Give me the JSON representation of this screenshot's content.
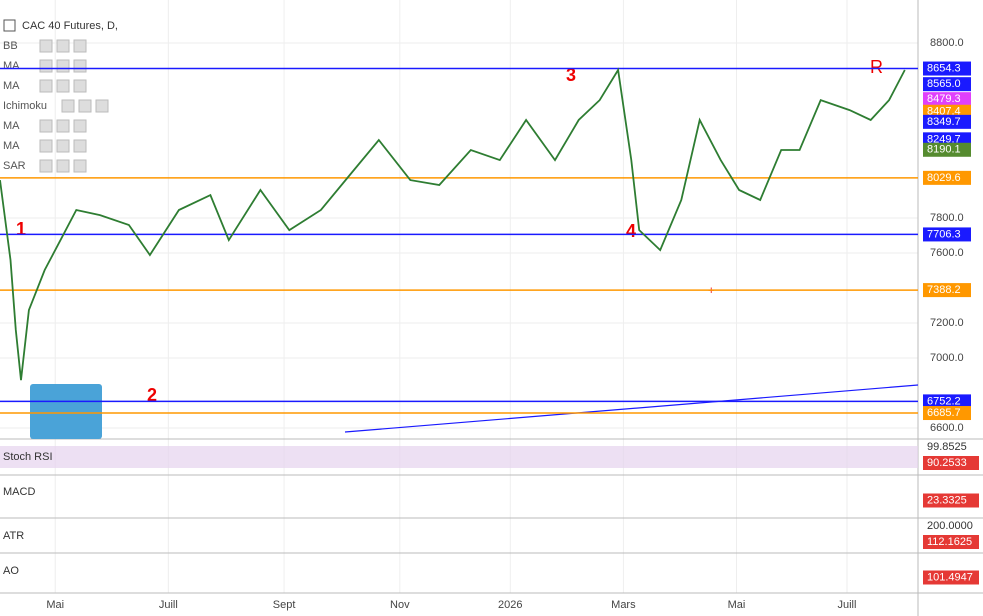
{
  "chart_data": {
    "type": "line",
    "title": "CAC 40 Futures, D,",
    "indicators": [
      "BB",
      "MA",
      "MA",
      "Ichimoku",
      "MA",
      "MA",
      "SAR"
    ],
    "x": [
      0,
      4,
      6,
      8,
      11,
      17,
      23,
      29,
      38,
      49,
      57,
      68,
      80,
      87,
      99,
      110,
      122,
      133,
      144,
      156,
      167,
      179,
      190,
      200,
      211,
      220,
      228,
      235,
      240,
      243,
      251,
      259,
      266,
      274,
      281,
      289,
      297,
      304,
      312,
      323,
      331,
      338,
      344
    ],
    "values": [
      8017,
      7560,
      7160,
      6874,
      7274,
      7503,
      7674,
      7846,
      7817,
      7760,
      7589,
      7846,
      7931,
      7674,
      7960,
      7731,
      7846,
      8046,
      8246,
      8017,
      7989,
      8189,
      8131,
      8360,
      8131,
      8360,
      8474,
      8646,
      8131,
      7731,
      7617,
      7903,
      8360,
      8131,
      7960,
      7903,
      8189,
      8189,
      8474,
      8417,
      8360,
      8474,
      8646
    ],
    "color": "#2e7d32",
    "xlim": [
      0,
      349
    ],
    "xticks": [
      {
        "value": 21,
        "label": "Mai"
      },
      {
        "value": 64,
        "label": "Juill"
      },
      {
        "value": 108,
        "label": "Sept"
      },
      {
        "value": 152,
        "label": "Nov"
      },
      {
        "value": 194,
        "label": "2026"
      },
      {
        "value": 237,
        "label": "Mars"
      },
      {
        "value": 280,
        "label": "Mai"
      },
      {
        "value": 322,
        "label": "Juill"
      }
    ],
    "ylim": [
      6543,
      9046
    ],
    "yticks": [
      {
        "value": 8800,
        "label": "8800.0"
      },
      {
        "value": 7800,
        "label": "7800.0"
      },
      {
        "value": 7600,
        "label": "7600.0"
      },
      {
        "value": 7200,
        "label": "7200.0"
      },
      {
        "value": 7000,
        "label": "7000.0"
      },
      {
        "value": 6600,
        "label": "6600.0"
      }
    ],
    "grid": true,
    "levels": [
      {
        "price": 8654.3,
        "color": "#1a1aff",
        "line": true
      },
      {
        "price": 8565,
        "label": "8565.0",
        "color": "#1a1aff",
        "line": false
      },
      {
        "price": 8479.3,
        "color": "#e040fb",
        "line": false
      },
      {
        "price": 8407.4,
        "color": "#ff9800",
        "line": false
      },
      {
        "price": 8349.7,
        "color": "#1a1aff",
        "line": false
      },
      {
        "price": 8249.7,
        "color": "#1a1aff",
        "line": false
      },
      {
        "price": 8190.1,
        "color": "#558b2f",
        "line": false
      },
      {
        "price": 8029.6,
        "color": "#ff9800",
        "line": true
      },
      {
        "price": 7706.3,
        "color": "#1a1aff",
        "line": true
      },
      {
        "price": 7388.2,
        "color": "#ff9800",
        "line": true
      },
      {
        "price": 6752.2,
        "color": "#1a1aff",
        "line": true
      },
      {
        "price": 6685.7,
        "color": "#ff9800",
        "line": true
      }
    ],
    "annotations": [
      "1",
      "2",
      "3",
      "4",
      "R"
    ],
    "panes": [
      {
        "name": "Stoch RSI",
        "labels": [
          99.8525,
          90.2533
        ]
      },
      {
        "name": "MACD",
        "labels": [
          23.3325
        ]
      },
      {
        "name": "ATR",
        "labels": [
          {
            "value": 200,
            "label": "200.0000"
          },
          112.1625
        ]
      },
      {
        "name": "AO",
        "labels": [
          101.4947
        ]
      }
    ]
  }
}
